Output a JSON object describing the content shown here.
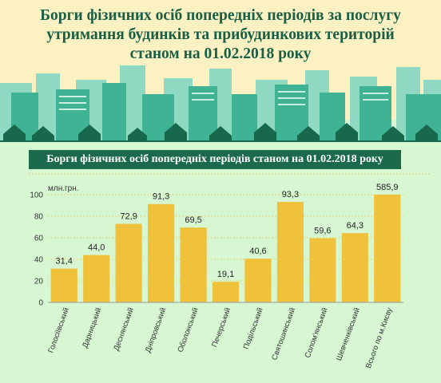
{
  "header": {
    "title_lines": [
      "Борги фізичних осіб попередніх періодів за послугу",
      "утримання будинків та прибудинкових територій",
      "станом на 01.02.2018 року"
    ]
  },
  "colors": {
    "bar": "#f0c13a",
    "title_text": "#185f46",
    "chart_title_bg": "#1c6a4c",
    "header_bg": "#fbf1c2",
    "chart_bg": "#d6f7d2",
    "grid": "#d9cf6a"
  },
  "chart_data": {
    "type": "bar",
    "title": "Борги фізичних осіб попередніх періодів станом на 01.02.2018 року",
    "ylabel": "млн.грн.",
    "xlabel": "",
    "ylim": [
      0,
      100
    ],
    "yticks": [
      0,
      20,
      40,
      60,
      80,
      100
    ],
    "grid": true,
    "categories": [
      "Голосіївський",
      "Дарницький",
      "Деснянський",
      "Дніпровський",
      "Оболонський",
      "Печерський",
      "Подільський",
      "Святошинський",
      "Солом'янський",
      "Шевченківський",
      "Всього по м.Києву"
    ],
    "values": [
      31.4,
      44.0,
      72.9,
      91.3,
      69.5,
      19.1,
      40.6,
      93.3,
      59.6,
      64.3,
      585.9
    ],
    "value_labels": [
      "31,4",
      "44,0",
      "72,9",
      "91,3",
      "69,5",
      "19,1",
      "40,6",
      "93,3",
      "59,6",
      "64,3",
      "585,9"
    ],
    "clipped_at_axis_max": [
      false,
      false,
      false,
      false,
      false,
      false,
      false,
      false,
      false,
      false,
      true
    ]
  }
}
